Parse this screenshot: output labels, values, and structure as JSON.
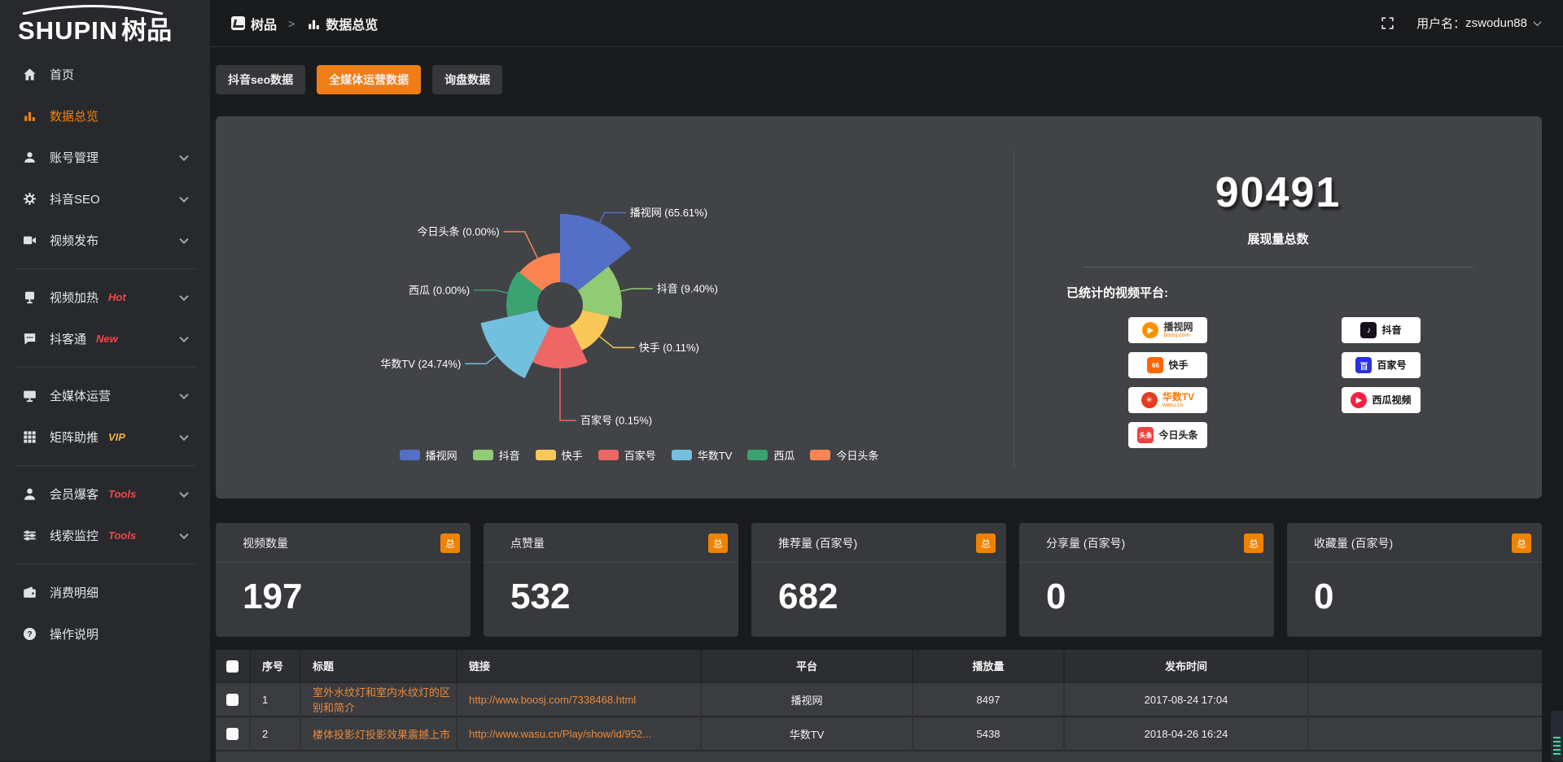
{
  "brand": {
    "logo_text_en": "SHUPIN",
    "logo_text_cn": "树品"
  },
  "topbar": {
    "breadcrumb_root": "树品",
    "breadcrumb_sep": ">",
    "breadcrumb_current": "数据总览",
    "username_label": "用户名：",
    "username": "zswodun88"
  },
  "sidebar": {
    "items": [
      {
        "label": "首页",
        "icon": "home-icon"
      },
      {
        "label": "数据总览",
        "icon": "chart-icon",
        "active": true
      },
      {
        "label": "账号管理",
        "icon": "user-icon",
        "expandable": true
      },
      {
        "label": "抖音SEO",
        "icon": "gear-icon",
        "expandable": true
      },
      {
        "label": "视频发布",
        "icon": "video-icon",
        "expandable": true
      },
      {
        "divider": true
      },
      {
        "label": "视频加热",
        "icon": "screen-icon",
        "badge": "Hot",
        "badge_color": "red",
        "expandable": true
      },
      {
        "label": "抖客通",
        "icon": "chat-icon",
        "badge": "New",
        "badge_color": "red",
        "expandable": true
      },
      {
        "divider": true
      },
      {
        "label": "全媒体运营",
        "icon": "monitor-icon",
        "expandable": true
      },
      {
        "label": "矩阵助推",
        "icon": "grid-icon",
        "badge": "VIP",
        "badge_color": "gold",
        "expandable": true
      },
      {
        "divider": true
      },
      {
        "label": "会员爆客",
        "icon": "person-icon",
        "badge": "Tools",
        "badge_color": "red",
        "expandable": true
      },
      {
        "label": "线索监控",
        "icon": "sliders-icon",
        "badge": "Tools",
        "badge_color": "red",
        "expandable": true
      },
      {
        "divider": true
      },
      {
        "label": "消费明细",
        "icon": "wallet-icon"
      },
      {
        "label": "操作说明",
        "icon": "help-icon"
      }
    ]
  },
  "tabs": [
    {
      "label": "抖音seo数据",
      "active": false
    },
    {
      "label": "全媒体运营数据",
      "active": true
    },
    {
      "label": "询盘数据",
      "active": false
    }
  ],
  "chart_data": {
    "type": "pie",
    "variant": "rose-donut",
    "legend_position": "bottom",
    "inner_radius": 28,
    "slices": [
      {
        "name": "播视网",
        "percent": 65.61,
        "color": "#5470c6",
        "radius": 112
      },
      {
        "name": "抖音",
        "percent": 9.4,
        "color": "#91cc75",
        "radius": 76
      },
      {
        "name": "快手",
        "percent": 0.11,
        "color": "#fac858",
        "radius": 62
      },
      {
        "name": "百家号",
        "percent": 0.15,
        "color": "#ee6666",
        "radius": 78
      },
      {
        "name": "华数TV",
        "percent": 24.74,
        "color": "#73c0de",
        "radius": 100
      },
      {
        "name": "西瓜",
        "percent": 0.0,
        "color": "#3ba272",
        "radius": 66
      },
      {
        "name": "今日头条",
        "percent": 0.0,
        "color": "#fc8452",
        "radius": 64
      }
    ]
  },
  "summary": {
    "total_value": "90491",
    "total_label": "展现量总数",
    "platforms_label": "已统计的视频平台:",
    "platform_badges_left": [
      {
        "name": "播视网",
        "sub": "boosj.com",
        "glyph": "▶",
        "bg": "#ff9100",
        "shape": "circle",
        "name_color": "#333333"
      },
      {
        "name": "快手",
        "glyph": "66",
        "bg": "#ff6600",
        "shape": "square",
        "name_color": "#222222"
      },
      {
        "name": "华数TV",
        "sub": "wasu.cn",
        "glyph": "✳",
        "bg": "#e63b22",
        "shape": "circle",
        "name_color": "#ff7b00"
      },
      {
        "name": "今日头条",
        "glyph": "头条",
        "bg": "#f04142",
        "shape": "square",
        "name_color": "#222222"
      }
    ],
    "platform_badges_right": [
      {
        "name": "抖音",
        "glyph": "♪",
        "bg": "#17101c",
        "shape": "square",
        "name_color": "#111111"
      },
      {
        "name": "百家号",
        "glyph": "百",
        "bg": "#2932e1",
        "shape": "square",
        "name_color": "#111111"
      },
      {
        "name": "西瓜视频",
        "glyph": "▶",
        "bg": "#fa1f41",
        "shape": "circle",
        "name_color": "#111111"
      }
    ]
  },
  "stat_cards": [
    {
      "label": "视频数量",
      "badge": "总",
      "value": "197"
    },
    {
      "label": "点赞量",
      "badge": "总",
      "value": "532"
    },
    {
      "label": "推荐量 (百家号)",
      "badge": "总",
      "value": "682"
    },
    {
      "label": "分享量 (百家号)",
      "badge": "总",
      "value": "0"
    },
    {
      "label": "收藏量 (百家号)",
      "badge": "总",
      "value": "0"
    }
  ],
  "table": {
    "headers": [
      "序号",
      "标题",
      "链接",
      "平台",
      "播放量",
      "发布时间"
    ],
    "rows": [
      {
        "index": "1",
        "title": "室外水纹灯和室内水纹灯的区别和简介",
        "link": "http://www.boosj.com/7338468.html",
        "platform": "播视网",
        "plays": "8497",
        "time": "2017-08-24 17:04"
      },
      {
        "index": "2",
        "title": "楼体投影灯投影效果震撼上市",
        "link": "http://www.wasu.cn/Play/show/id/952...",
        "platform": "华数TV",
        "plays": "5438",
        "time": "2018-04-26 16:24"
      }
    ]
  }
}
